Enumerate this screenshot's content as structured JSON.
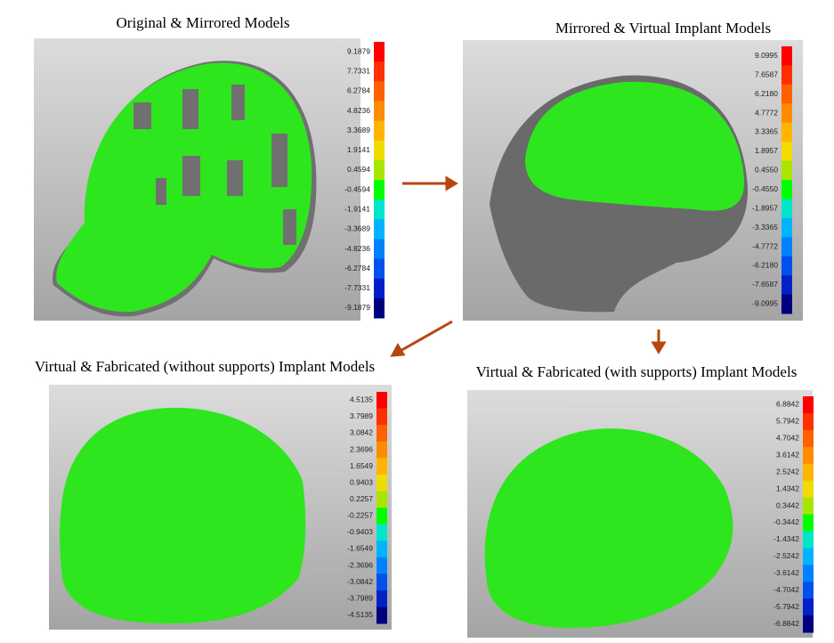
{
  "panels": [
    {
      "title": "Original & Mirrored Models",
      "scale": [
        "9.1879",
        "7.7331",
        "6.2784",
        "4.8236",
        "3.3689",
        "1.9141",
        "0.4594",
        "-0.4594",
        "-1.9141",
        "-3.3689",
        "-4.8236",
        "-6.2784",
        "-7.7331",
        "-9.1879"
      ]
    },
    {
      "title": "Mirrored & Virtual Implant Models",
      "scale": [
        "9.0995",
        "7.6587",
        "6.2180",
        "4.7772",
        "3.3365",
        "1.8957",
        "0.4550",
        "-0.4550",
        "-1.8957",
        "-3.3365",
        "-4.7772",
        "-6.2180",
        "-7.6587",
        "-9.0995"
      ]
    },
    {
      "title": "Virtual & Fabricated (without supports) Implant Models",
      "scale": [
        "4.5135",
        "3.7989",
        "3.0842",
        "2.3696",
        "1.6549",
        "0.9403",
        "0.2257",
        "-0.2257",
        "-0.9403",
        "-1.6549",
        "-2.3696",
        "-3.0842",
        "-3.7989",
        "-4.5135"
      ]
    },
    {
      "title": "Virtual & Fabricated (with supports) Implant Models",
      "scale": [
        "6.8842",
        "5.7942",
        "4.7042",
        "3.6142",
        "2.5242",
        "1.4342",
        "0.3442",
        "-0.3442",
        "-1.4342",
        "-2.5242",
        "-3.6142",
        "-4.7042",
        "-5.7942",
        "-6.8842"
      ]
    }
  ]
}
